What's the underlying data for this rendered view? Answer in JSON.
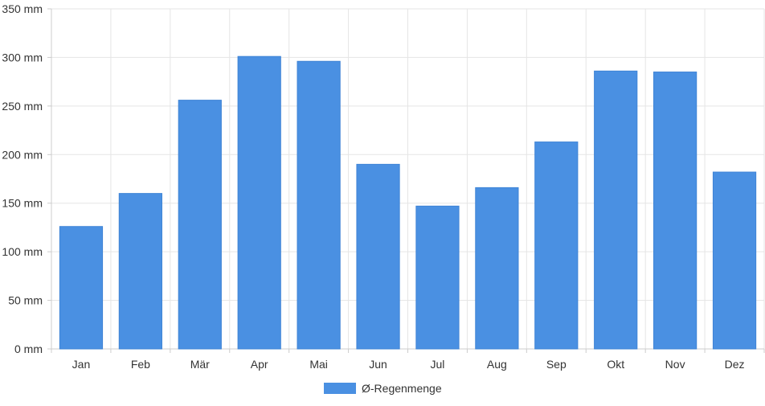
{
  "chart_data": {
    "type": "bar",
    "categories": [
      "Jan",
      "Feb",
      "Mär",
      "Apr",
      "Mai",
      "Jun",
      "Jul",
      "Aug",
      "Sep",
      "Okt",
      "Nov",
      "Dez"
    ],
    "series": [
      {
        "name": "Ø-Regenmenge",
        "values": [
          126,
          160,
          256,
          301,
          296,
          190,
          147,
          166,
          213,
          286,
          285,
          182
        ],
        "color": "#4a90e2"
      }
    ],
    "y_ticks": [
      0,
      50,
      100,
      150,
      200,
      250,
      300,
      350
    ],
    "y_unit": "mm",
    "ylim": [
      0,
      350
    ],
    "grid": true,
    "legend": "bottom-center"
  }
}
